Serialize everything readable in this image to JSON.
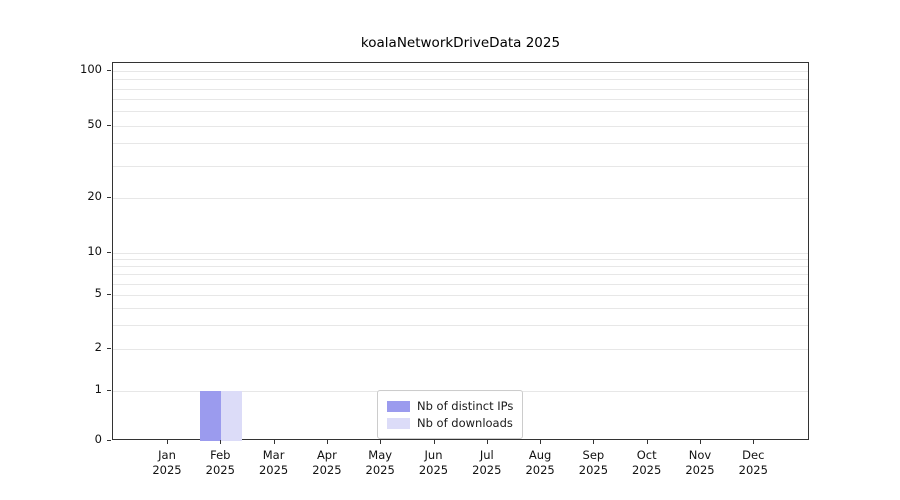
{
  "title": "koalaNetworkDriveData 2025",
  "chart_data": {
    "type": "bar",
    "title": "koalaNetworkDriveData 2025",
    "scale": "symlog",
    "grid": "horizontal-minor-log",
    "legend_position": "bottom-center",
    "year": "2025",
    "categories": [
      "Jan",
      "Feb",
      "Mar",
      "Apr",
      "May",
      "Jun",
      "Jul",
      "Aug",
      "Sep",
      "Oct",
      "Nov",
      "Dec"
    ],
    "yticks": [
      0,
      1,
      2,
      5,
      10,
      20,
      50,
      100
    ],
    "ylim": [
      0,
      110
    ],
    "series": [
      {
        "name": "Nb of distinct IPs",
        "color": "#9b9bee",
        "values": [
          0,
          1,
          0,
          0,
          0,
          0,
          0,
          0,
          0,
          0,
          0,
          0
        ]
      },
      {
        "name": "Nb of downloads",
        "color": "#dcdcf8",
        "values": [
          0,
          1,
          0,
          0,
          0,
          0,
          0,
          0,
          0,
          0,
          0,
          0
        ]
      }
    ]
  }
}
